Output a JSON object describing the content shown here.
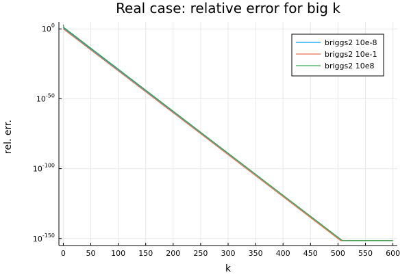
{
  "chart_data": {
    "type": "line",
    "title": "Real case: relative error for big k",
    "xlabel": "k",
    "ylabel": "rel. err.",
    "xlim": [
      -8,
      608
    ],
    "ylim_log10": [
      -155,
      5
    ],
    "y_scale": "log10",
    "grid": true,
    "legend_position": "top-right",
    "x_ticks": [
      0,
      50,
      100,
      150,
      200,
      250,
      300,
      350,
      400,
      450,
      500,
      550,
      600
    ],
    "y_ticks": [
      {
        "exp": 0,
        "base": "10",
        "sup": "0"
      },
      {
        "exp": -50,
        "base": "10",
        "sup": "-50"
      },
      {
        "exp": -100,
        "base": "10",
        "sup": "-100"
      },
      {
        "exp": -150,
        "base": "10",
        "sup": "-150"
      }
    ],
    "series": [
      {
        "name": "briggs2 10e-8",
        "color": "#009AFA",
        "points": [
          [
            0,
            1
          ],
          [
            1,
            0.5
          ],
          [
            508,
            -151.5
          ],
          [
            600,
            -151.5
          ]
        ]
      },
      {
        "name": "briggs2 10e-1",
        "color": "#E26F46",
        "points": [
          [
            0,
            0
          ],
          [
            505,
            -151.5
          ],
          [
            600,
            -151.5
          ]
        ]
      },
      {
        "name": "briggs2 10e8",
        "color": "#3DA44E",
        "points": [
          [
            0,
            3
          ],
          [
            1,
            1
          ],
          [
            508,
            -151.5
          ],
          [
            600,
            -151.5
          ]
        ]
      }
    ]
  },
  "colors": {
    "axis": "#000000",
    "grid": "#e8e8e8",
    "legend_border": "#000000"
  }
}
